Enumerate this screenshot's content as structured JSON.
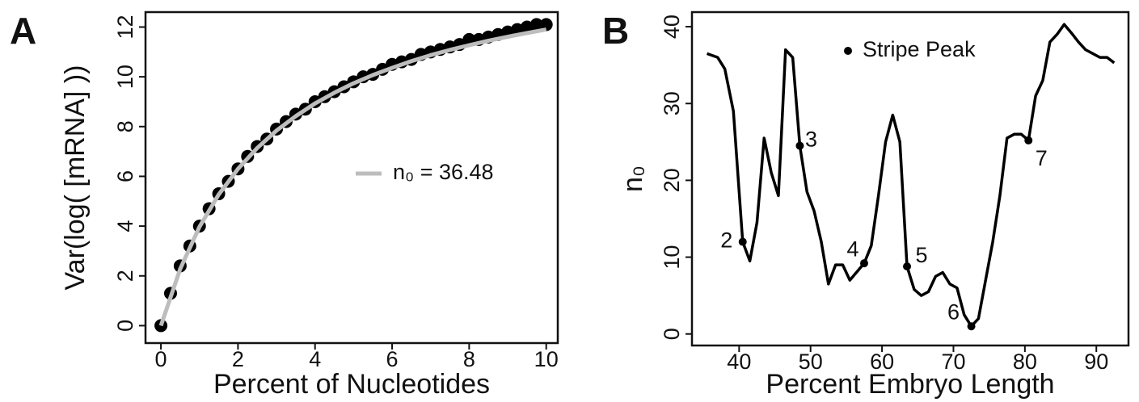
{
  "chart_data": [
    {
      "type": "scatter",
      "panel_label": "A",
      "xlabel": "Percent of Nucleotides",
      "ylabel": "Var(log( [mRNA] ))",
      "xlim": [
        -0.4,
        10.3
      ],
      "ylim": [
        -0.7,
        12.6
      ],
      "xticks": [
        0,
        2,
        4,
        6,
        8,
        10
      ],
      "yticks": [
        0,
        2,
        4,
        6,
        8,
        10,
        12
      ],
      "legend": "center-right",
      "series": [
        {
          "kind": "points",
          "color": "#000000",
          "x": [
            0,
            0.25,
            0.5,
            0.75,
            1,
            1.25,
            1.5,
            1.75,
            2,
            2.25,
            2.5,
            2.75,
            3,
            3.25,
            3.5,
            3.75,
            4,
            4.25,
            4.5,
            4.75,
            5,
            5.25,
            5.5,
            5.75,
            6,
            6.25,
            6.5,
            6.75,
            7,
            7.25,
            7.5,
            7.75,
            8,
            8.25,
            8.5,
            8.75,
            9,
            9.25,
            9.5,
            9.75,
            10
          ],
          "values": [
            0,
            1.3,
            2.4,
            3.2,
            4.0,
            4.7,
            5.3,
            5.8,
            6.3,
            6.8,
            7.2,
            7.5,
            7.9,
            8.2,
            8.5,
            8.7,
            9.0,
            9.2,
            9.4,
            9.6,
            9.8,
            10.0,
            10.1,
            10.3,
            10.5,
            10.6,
            10.7,
            10.9,
            11.0,
            11.1,
            11.2,
            11.3,
            11.5,
            11.5,
            11.6,
            11.7,
            11.8,
            11.9,
            12.0,
            12.1,
            12.1
          ]
        },
        {
          "kind": "line",
          "name": "n₀ = 36.48",
          "color": "#bdbdbd",
          "x": [
            0,
            0.5,
            1,
            1.5,
            2,
            2.5,
            3,
            3.5,
            4,
            4.5,
            5,
            5.5,
            6,
            6.5,
            7,
            7.5,
            8,
            8.5,
            9,
            9.5,
            10
          ],
          "values": [
            0,
            2.28,
            3.97,
            5.27,
            6.3,
            7.14,
            7.84,
            8.42,
            8.93,
            9.36,
            9.74,
            10.07,
            10.36,
            10.63,
            10.87,
            11.08,
            11.27,
            11.45,
            11.61,
            11.76,
            11.9
          ]
        }
      ]
    },
    {
      "type": "line",
      "panel_label": "B",
      "xlabel": "Percent Embryo Length",
      "ylabel": "n₀",
      "xlim": [
        33.4,
        94.5
      ],
      "ylim": [
        -1.5,
        41.9
      ],
      "xticks": [
        40,
        50,
        60,
        70,
        80,
        90
      ],
      "yticks": [
        0,
        10,
        20,
        30,
        40
      ],
      "legend": "top-center",
      "series": [
        {
          "kind": "line",
          "color": "#000000",
          "x": [
            35.5,
            37,
            38,
            39.2,
            40.5,
            41.5,
            42.5,
            43.5,
            44.5,
            45.5,
            46.5,
            47.5,
            48.5,
            49.5,
            50.5,
            51.5,
            52.5,
            53.5,
            54.5,
            55.5,
            57.5,
            58.5,
            59.5,
            60.5,
            61.5,
            62.5,
            63.5,
            64.5,
            65.5,
            66.5,
            67.5,
            68.5,
            69.5,
            70.5,
            71.5,
            72.5,
            73.5,
            74.5,
            75.5,
            76.5,
            77.5,
            78.5,
            79.5,
            80.5,
            81.5,
            82.5,
            83.5,
            84.5,
            85.5,
            86.5,
            87.5,
            88.5,
            89.5,
            90.5,
            91.5,
            92.5
          ],
          "values": [
            36.5,
            36,
            34.5,
            29,
            12,
            9.5,
            14.5,
            25.5,
            21,
            18,
            37,
            36,
            24.5,
            18.5,
            16,
            12,
            6.5,
            9,
            9,
            7,
            9.2,
            11.5,
            18,
            25,
            28.5,
            25,
            8.8,
            5.8,
            5,
            5.5,
            7.5,
            8,
            6.5,
            6,
            2.5,
            1,
            2,
            7,
            12,
            18,
            25.5,
            26,
            26,
            25.2,
            31,
            33,
            38,
            39,
            40.3,
            39.2,
            38,
            37,
            36.5,
            36,
            36,
            35.3
          ]
        },
        {
          "kind": "points",
          "name": "Stripe Peak",
          "color": "#000000",
          "x": [
            40.5,
            48.5,
            57.5,
            63.5,
            72.5,
            80.5
          ],
          "values": [
            12,
            24.5,
            9.2,
            8.8,
            1,
            25.2
          ],
          "labels": [
            "2",
            "3",
            "4",
            "5",
            "6",
            "7"
          ]
        }
      ]
    }
  ]
}
